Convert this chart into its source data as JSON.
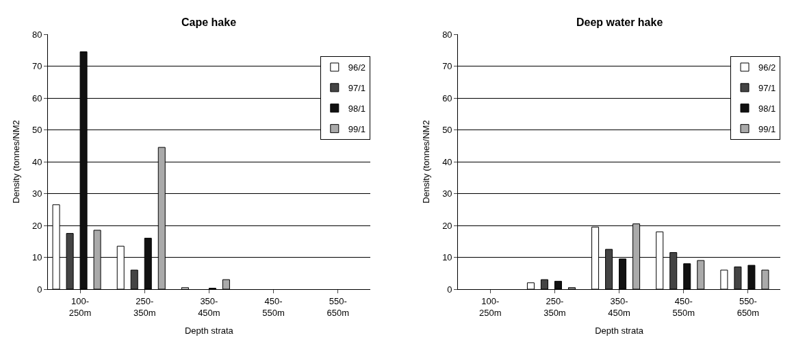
{
  "chart_data": [
    {
      "type": "bar",
      "title": "Cape hake",
      "xlabel": "Depth strata",
      "ylabel": "Density (tonnes/NM2",
      "categories": [
        "100-\n250m",
        "250-\n350m",
        "350-\n450m",
        "450-\n550m",
        "550-\n650m"
      ],
      "series": [
        {
          "name": "96/2",
          "color": "#ffffff",
          "values": [
            26.5,
            13.5,
            0.5,
            0,
            0
          ]
        },
        {
          "name": "97/1",
          "color": "#444444",
          "values": [
            17.5,
            6,
            0,
            0,
            0
          ]
        },
        {
          "name": "98/1",
          "color": "#111111",
          "values": [
            74.5,
            16,
            0.3,
            0,
            0
          ]
        },
        {
          "name": "99/1",
          "color": "#aaaaaa",
          "values": [
            18.5,
            44.5,
            3,
            0,
            0
          ]
        }
      ],
      "ylim": [
        0,
        80
      ],
      "yticks": [
        0,
        10,
        20,
        30,
        40,
        50,
        60,
        70,
        80
      ],
      "grid": "y",
      "legend": "right"
    },
    {
      "type": "bar",
      "title": "Deep water hake",
      "xlabel": "Depth strata",
      "ylabel": "Density (tonnes/NM2",
      "categories": [
        "100-\n250m",
        "250-\n350m",
        "350-\n450m",
        "450-\n550m",
        "550-\n650m"
      ],
      "series": [
        {
          "name": "96/2",
          "color": "#ffffff",
          "values": [
            0,
            2,
            19.5,
            18,
            6
          ]
        },
        {
          "name": "97/1",
          "color": "#444444",
          "values": [
            0,
            3,
            12.5,
            11.5,
            7
          ]
        },
        {
          "name": "98/1",
          "color": "#111111",
          "values": [
            0,
            2.5,
            9.5,
            8,
            7.5
          ]
        },
        {
          "name": "99/1",
          "color": "#aaaaaa",
          "values": [
            0,
            0.5,
            20.5,
            9,
            6
          ]
        }
      ],
      "ylim": [
        0,
        80
      ],
      "yticks": [
        0,
        10,
        20,
        30,
        40,
        50,
        60,
        70,
        80
      ],
      "grid": "y",
      "legend": "right"
    }
  ]
}
